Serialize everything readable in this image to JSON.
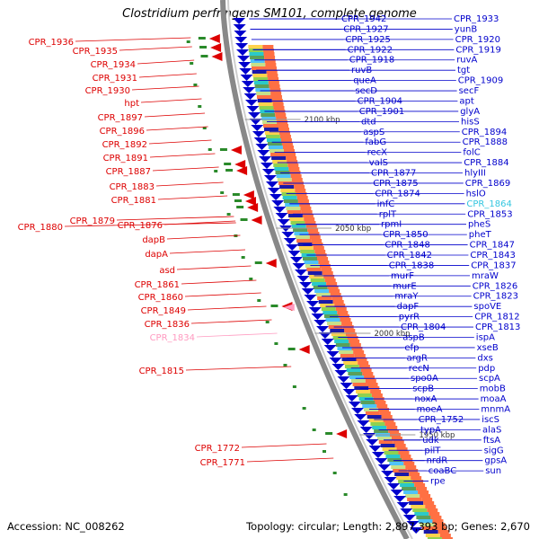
{
  "title": "Clostridium perfringens SM101, complete genome",
  "footer": {
    "accession": "Accession: NC_008262",
    "topology": "Topology: circular; Length: 2,897,393 bp; Genes: 2,670"
  },
  "colors": {
    "forward": "#0000cc",
    "reverse": "#dd0000",
    "pink": "#ff9ac0",
    "backbone": "#888888"
  },
  "scale_labels": [
    "2100 kbp",
    "2050 kbp",
    "2000 kbp",
    "1950 kbp"
  ],
  "left_labels": [
    "CPR_1936",
    "CPR_1935",
    "CPR_1934",
    "CPR_1931",
    "CPR_1930",
    "hpt",
    "CPR_1897",
    "CPR_1896",
    "CPR_1892",
    "CPR_1891",
    "CPR_1887",
    "CPR_1883",
    "CPR_1881",
    "CPR_1880",
    "CPR_1879",
    "CPR_1876",
    "dapB",
    "dapA",
    "asd",
    "CPR_1861",
    "CPR_1860",
    "CPR_1849",
    "CPR_1836",
    "CPR_1834",
    "CPR_1815",
    "CPR_1772",
    "CPR_1771"
  ],
  "right_labels": [
    "CPR_1942",
    "CPR_1933",
    "CPR_1927",
    "yunB",
    "CPR_1925",
    "CPR_1920",
    "CPR_1922",
    "CPR_1919",
    "CPR_1918",
    "ruvA",
    "ruvB",
    "tgt",
    "queA",
    "CPR_1909",
    "secD",
    "secF",
    "CPR_1904",
    "apt",
    "CPR_1901",
    "glyA",
    "dtd",
    "hisS",
    "aspS",
    "CPR_1894",
    "fabG",
    "CPR_1888",
    "recX",
    "folC",
    "valS",
    "CPR_1884",
    "CPR_1877",
    "hlyIII",
    "CPR_1875",
    "CPR_1869",
    "CPR_1874",
    "hslO",
    "infC",
    "CPR_1864",
    "rplT",
    "CPR_1853",
    "rpmI",
    "pheS",
    "CPR_1850",
    "pheT",
    "CPR_1848",
    "CPR_1847",
    "CPR_1842",
    "CPR_1843",
    "CPR_1838",
    "CPR_1837",
    "murF",
    "mraW",
    "murE",
    "CPR_1826",
    "mraY",
    "CPR_1823",
    "dapF",
    "spoVE",
    "pyrR",
    "CPR_1812",
    "CPR_1804",
    "CPR_1813",
    "aspB",
    "ispA",
    "efp",
    "xseB",
    "argR",
    "dxs",
    "recN",
    "pdp",
    "spo0A",
    "scpA",
    "scpB",
    "mobB",
    "noxA",
    "moaA",
    "moeA",
    "mnmA",
    "CPR_1752",
    "iscS",
    "typA",
    "alaS",
    "udk",
    "ftsA",
    "pilT",
    "sigG",
    "nrdR",
    "gpsA",
    "coaBC",
    "sun",
    "rpe"
  ]
}
